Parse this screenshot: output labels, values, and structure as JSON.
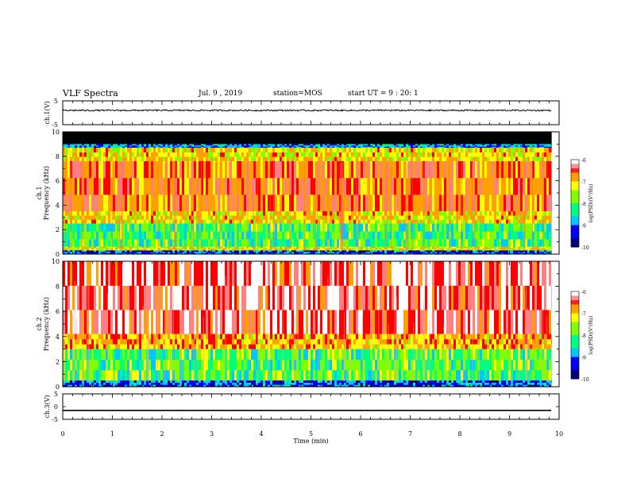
{
  "header": {
    "title": "VLF Spectra",
    "date": "Jul. 9 , 2019",
    "station": "station=MOS",
    "start": "start UT = 9 : 20: 1"
  },
  "chart_data": [
    {
      "type": "line",
      "panel": "ch1-waveform",
      "ylabel": "ch.1(V)",
      "ylim": [
        -5,
        5
      ],
      "yticks": [
        "5",
        "-5"
      ],
      "xlim": [
        0,
        10
      ],
      "series": [
        {
          "description": "noisy waveform near +1 V",
          "level": 1.0,
          "noise": 0.3,
          "end": 9.85
        }
      ]
    },
    {
      "type": "heatmap",
      "panel": "ch1-spectrogram",
      "ylabel": "ch.1\nFrequency (kHz)",
      "ylim": [
        0,
        10
      ],
      "yticks": [
        "0",
        "2",
        "4",
        "6",
        "8",
        "10"
      ],
      "xlim": [
        0,
        9.85
      ],
      "colorbar": {
        "label": "log(PSD)(V²/Hz)",
        "ticks": [
          "-6",
          "-7",
          "-8",
          "-9",
          "-10"
        ],
        "range": [
          -10,
          -6
        ]
      },
      "bands": [
        {
          "from": 9.0,
          "to": 10.0,
          "level": -10.5
        },
        {
          "from": 8.7,
          "to": 9.0,
          "level": -9.0
        },
        {
          "from": 7.6,
          "to": 8.7,
          "level": -7.0
        },
        {
          "from": 3.5,
          "to": 7.6,
          "level": -6.3
        },
        {
          "from": 2.5,
          "to": 3.5,
          "level": -7.0
        },
        {
          "from": 0.6,
          "to": 2.5,
          "level": -8.1
        },
        {
          "from": 0.3,
          "to": 0.6,
          "level": -7.2
        },
        {
          "from": 0.0,
          "to": 0.3,
          "level": -9.3
        }
      ]
    },
    {
      "type": "heatmap",
      "panel": "ch2-spectrogram",
      "ylabel": "ch.2\nFrequency (kHz)",
      "ylim": [
        0,
        10
      ],
      "yticks": [
        "0",
        "2",
        "4",
        "6",
        "8",
        "10"
      ],
      "xlim": [
        0,
        9.85
      ],
      "colorbar": {
        "label": "log(PSD)(V²/Hz)",
        "ticks": [
          "-6",
          "-7",
          "-8",
          "-9",
          "-10"
        ],
        "range": [
          -10,
          -6
        ]
      },
      "bands": [
        {
          "from": 4.2,
          "to": 10.0,
          "level": -5.7
        },
        {
          "from": 3.0,
          "to": 4.2,
          "level": -6.7
        },
        {
          "from": 0.5,
          "to": 3.0,
          "level": -8.0
        },
        {
          "from": 0.0,
          "to": 0.5,
          "level": -9.2
        }
      ]
    },
    {
      "type": "line",
      "panel": "ch3-waveform",
      "ylabel": "ch.3(V)",
      "ylim": [
        -5,
        5
      ],
      "yticks": [
        "5",
        "0",
        "-5"
      ],
      "xlim": [
        0,
        10
      ],
      "xlabel": "Time (min)",
      "xticks": [
        "0",
        "1",
        "2",
        "3",
        "4",
        "5",
        "6",
        "7",
        "8",
        "9",
        "10"
      ],
      "series": [
        {
          "description": "flat line",
          "level": -1.5,
          "noise": 0,
          "end": 9.85
        }
      ]
    }
  ],
  "colors": {
    "cmap": [
      "#000080",
      "#0000ff",
      "#00c8ff",
      "#00ff80",
      "#80ff00",
      "#ffff00",
      "#ffa000",
      "#ff0000",
      "#ff8080",
      "#ffffff"
    ]
  }
}
